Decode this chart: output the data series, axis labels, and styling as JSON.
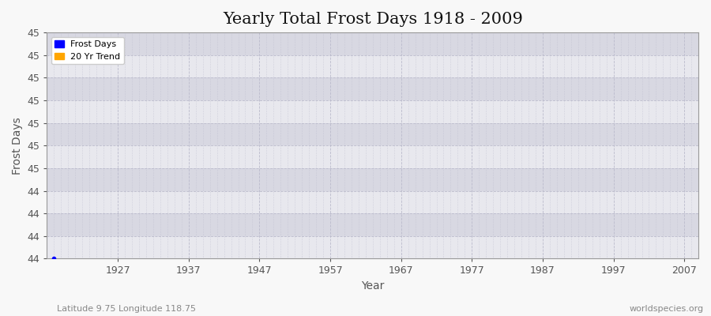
{
  "title": "Yearly Total Frost Days 1918 - 2009",
  "xlabel": "Year",
  "ylabel": "Frost Days",
  "fig_bg_color": "#f8f8f8",
  "plot_bg_color": "#e0e0e8",
  "frost_days_color": "#0000ff",
  "trend_color": "#ffa500",
  "data_x": [
    1918
  ],
  "data_y": [
    44.0
  ],
  "xlim": [
    1917,
    2009
  ],
  "ylim_bottom": 44.0,
  "ylim_top": 45.25,
  "ytick_positions": [
    44.0,
    44.125,
    44.25,
    44.375,
    44.5,
    44.625,
    44.75,
    44.875,
    45.0,
    45.125,
    45.25
  ],
  "ytick_labels": [
    "44",
    "44",
    "44",
    "44",
    "45",
    "45",
    "45",
    "45",
    "45",
    "45",
    "45"
  ],
  "xtick_values": [
    1927,
    1937,
    1947,
    1957,
    1967,
    1977,
    1987,
    1997,
    2007
  ],
  "legend_labels": [
    "Frost Days",
    "20 Yr Trend"
  ],
  "legend_colors": [
    "#0000ff",
    "#ffa500"
  ],
  "bottom_left_text": "Latitude 9.75 Longitude 118.75",
  "bottom_right_text": "worldspecies.org",
  "title_fontsize": 15,
  "axis_label_fontsize": 10,
  "tick_fontsize": 9,
  "band_color_light": "#e8e8ee",
  "band_color_dark": "#d8d8e2",
  "grid_color": "#cccccc",
  "minor_grid_color": "#cccccc"
}
